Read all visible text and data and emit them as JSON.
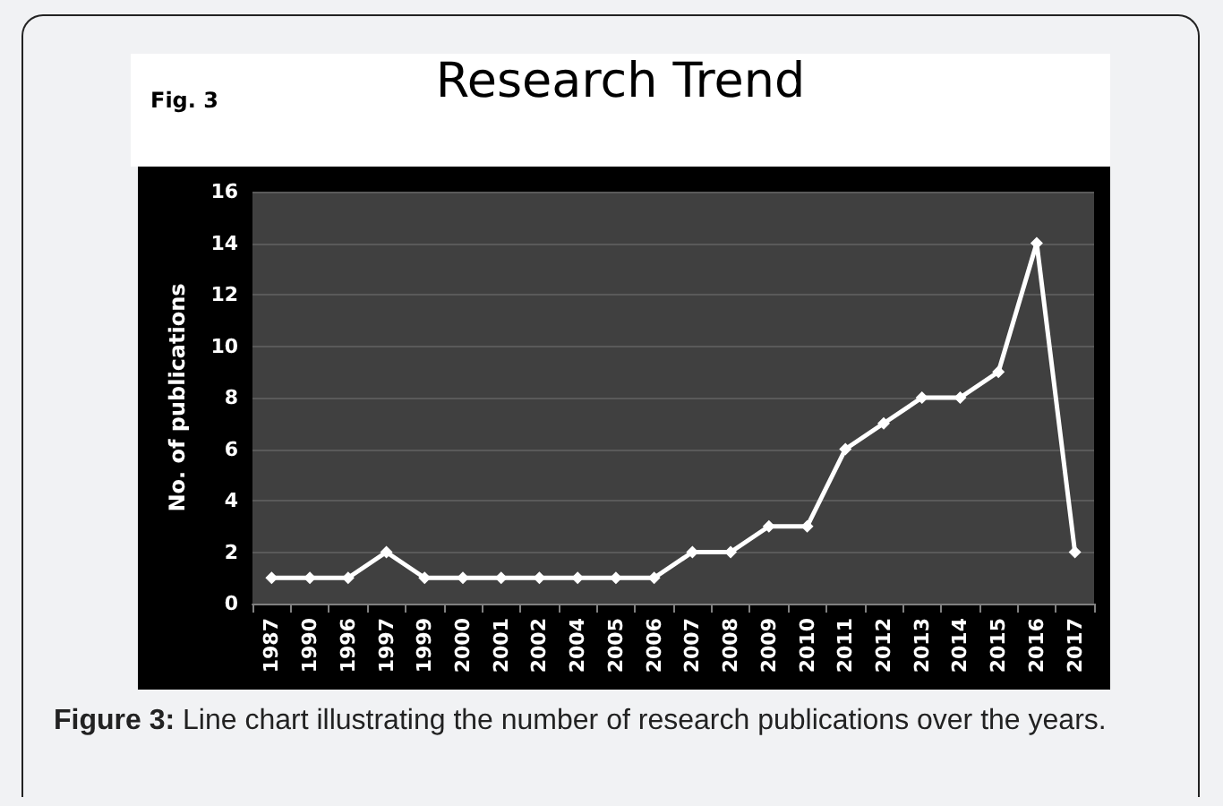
{
  "chart_data": {
    "type": "line",
    "title": "Research Trend",
    "ylabel": "No. of publications",
    "annotations": [
      "Fig. 3",
      "Figure 3: Line chart illustrating the number of research publications over the years."
    ],
    "categories": [
      "1987",
      "1990",
      "1996",
      "1997",
      "1999",
      "2000",
      "2001",
      "2002",
      "2004",
      "2005",
      "2006",
      "2007",
      "2008",
      "2009",
      "2010",
      "2011",
      "2012",
      "2013",
      "2014",
      "2015",
      "2016",
      "2017"
    ],
    "series": [
      {
        "color": "#ffffff",
        "values": [
          1,
          1,
          1,
          2,
          1,
          1,
          1,
          1,
          1,
          1,
          1,
          2,
          2,
          3,
          3,
          6,
          7,
          8,
          8,
          9,
          14,
          2
        ]
      }
    ],
    "ylim": [
      0,
      16
    ],
    "yticks": [
      0,
      2,
      4,
      6,
      8,
      10,
      12,
      14,
      16
    ],
    "grid": "y",
    "marker": "diamond",
    "line_style": "solid"
  }
}
